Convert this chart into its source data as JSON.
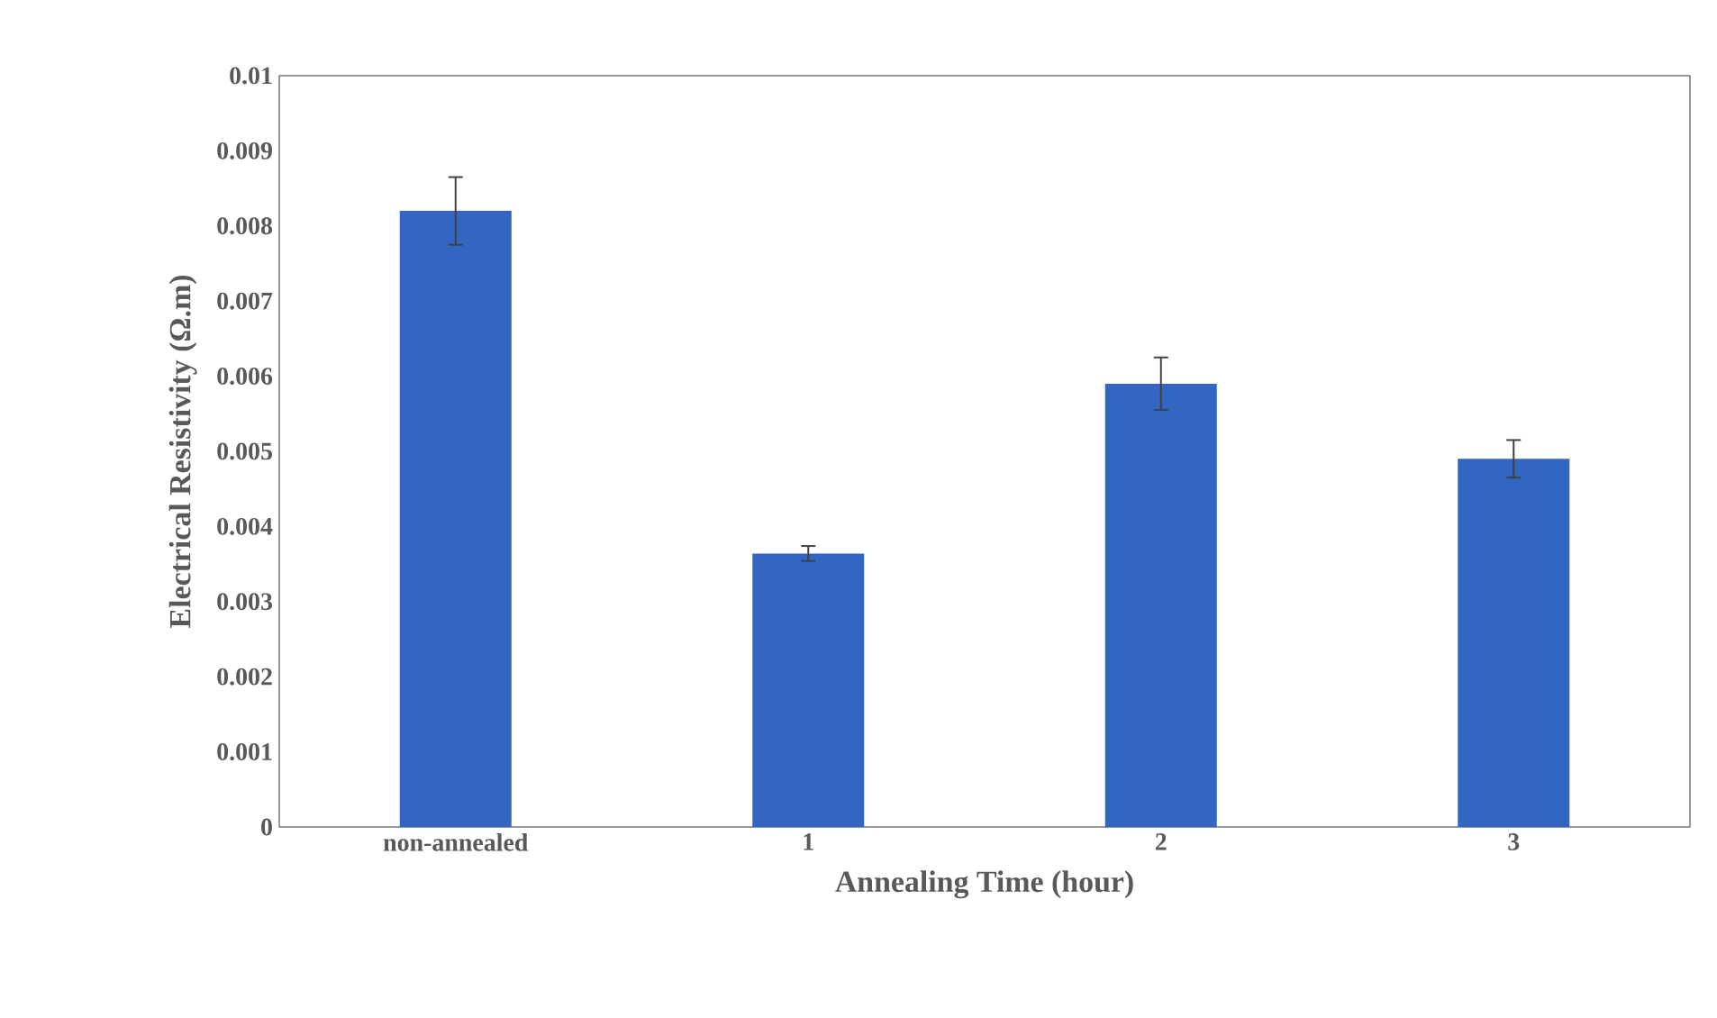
{
  "chart_data": {
    "type": "bar",
    "xlabel": "Annealing Time (hour)",
    "ylabel": "Electrical Resistivity (Ω.m)",
    "categories": [
      "non-annealed",
      "1",
      "2",
      "3"
    ],
    "values": [
      0.0082,
      0.00364,
      0.0059,
      0.0049
    ],
    "errors": [
      0.00045,
      0.0001,
      0.00035,
      0.00025
    ],
    "color": "#3366c0",
    "ylim": [
      0,
      0.01
    ],
    "yticks": [
      0,
      0.001,
      0.002,
      0.003,
      0.004,
      0.005,
      0.006,
      0.007,
      0.008,
      0.009,
      0.01
    ],
    "grid": false
  }
}
